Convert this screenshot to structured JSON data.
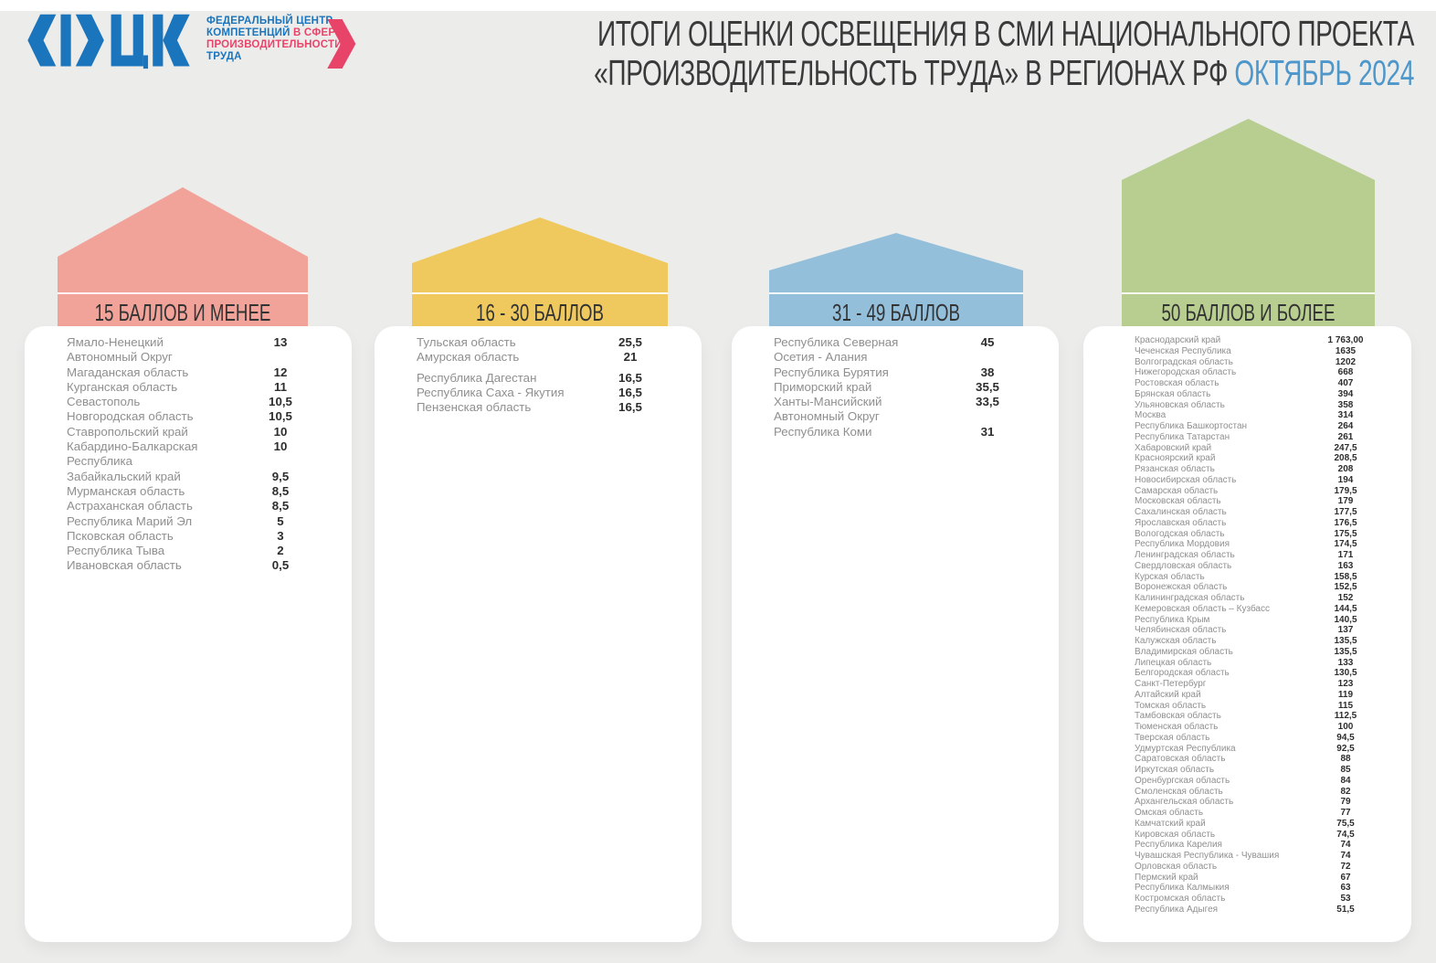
{
  "header": {
    "logo": {
      "mark": "ФЦК",
      "line1": "ФЕДЕРАЛЬНЫЙ ЦЕНТР",
      "line2_blue": "КОМПЕТЕНЦИЙ",
      "line2_red": "В СФЕРЕ",
      "line3": "ПРОИЗВОДИТЕЛЬНОСТИ",
      "line4": "ТРУДА",
      "blue": "#1B75BC",
      "red": "#E8446A"
    },
    "title_line1": "ИТОГИ ОЦЕНКИ ОСВЕЩЕНИЯ В СМИ НАЦИОНАЛЬНОГО ПРОЕКТА",
    "title_line2": "«ПРОИЗВОДИТЕЛЬНОСТЬ ТРУДА» В РЕГИОНАХ РФ",
    "title_period": "ОКТЯБРЬ 2024"
  },
  "chart_data": {
    "type": "table",
    "title": "ИТОГИ ОЦЕНКИ ОСВЕЩЕНИЯ В СМИ НАЦИОНАЛЬНОГО ПРОЕКТА «ПРОИЗВОДИТЕЛЬНОСТЬ ТРУДА» В РЕГИОНАХ РФ, ОКТЯБРЬ 2024",
    "groups": [
      {
        "label": "15 БАЛЛОВ И МЕНЕЕ",
        "color": "#F1A39A",
        "rows": [
          {
            "name": "Ямало-Ненецкий\nАвтономный Округ",
            "value": "13"
          },
          {
            "name": "Магаданская область",
            "value": "12"
          },
          {
            "name": "Курганская область",
            "value": "11"
          },
          {
            "name": "Севастополь",
            "value": "10,5"
          },
          {
            "name": "Новгородская область",
            "value": "10,5"
          },
          {
            "name": "Ставропольский край",
            "value": "10"
          },
          {
            "name": "Кабардино-Балкарская\nРеспублика",
            "value": "10"
          },
          {
            "name": "Забайкальский край",
            "value": "9,5"
          },
          {
            "name": "Мурманская область",
            "value": "8,5"
          },
          {
            "name": "Астраханская область",
            "value": "8,5"
          },
          {
            "name": "Республика Марий Эл",
            "value": "5"
          },
          {
            "name": "Псковская область",
            "value": "3"
          },
          {
            "name": "Республика Тыва",
            "value": "2"
          },
          {
            "name": "Ивановская область",
            "value": "0,5"
          }
        ]
      },
      {
        "label": "16 - 30 БАЛЛОВ",
        "color": "#EFC95E",
        "rows": [
          {
            "name": "Тульская область",
            "value": "25,5"
          },
          {
            "name": "Амурская область",
            "value": "21"
          },
          {
            "name": "Республика Дагестан",
            "value": "16,5",
            "gap": true
          },
          {
            "name": "Республика Саха - Якутия",
            "value": "16,5"
          },
          {
            "name": "Пензенская область",
            "value": "16,5"
          }
        ]
      },
      {
        "label": "31 - 49 БАЛЛОВ",
        "color": "#94BFDA",
        "rows": [
          {
            "name": "Республика Северная\nОсетия - Алания",
            "value": "45"
          },
          {
            "name": "Республика Бурятия",
            "value": "38"
          },
          {
            "name": "Приморский край",
            "value": "35,5"
          },
          {
            "name": "Ханты-Мансийский\nАвтономный Округ",
            "value": "33,5"
          },
          {
            "name": "Республика Коми",
            "value": "31"
          }
        ]
      },
      {
        "label": "50 БАЛЛОВ И БОЛЕЕ",
        "color": "#B7CE90",
        "rows": [
          {
            "name": "Краснодарский край",
            "value": "1 763,00"
          },
          {
            "name": "Чеченская Республика",
            "value": "1635"
          },
          {
            "name": "Волгоградская область",
            "value": "1202"
          },
          {
            "name": "Нижегородская область",
            "value": "668"
          },
          {
            "name": "Ростовская область",
            "value": "407"
          },
          {
            "name": "Брянская область",
            "value": "394"
          },
          {
            "name": "Ульяновская область",
            "value": "358"
          },
          {
            "name": "Москва",
            "value": "314"
          },
          {
            "name": "Республика Башкортостан",
            "value": "264"
          },
          {
            "name": "Республика Татарстан",
            "value": "261"
          },
          {
            "name": "Хабаровский край",
            "value": "247,5"
          },
          {
            "name": "Красноярский край",
            "value": "208,5"
          },
          {
            "name": "Рязанская область",
            "value": "208"
          },
          {
            "name": "Новосибирская область",
            "value": "194"
          },
          {
            "name": "Самарская область",
            "value": "179,5"
          },
          {
            "name": "Московская область",
            "value": "179"
          },
          {
            "name": "Сахалинская область",
            "value": "177,5"
          },
          {
            "name": "Ярославская область",
            "value": "176,5"
          },
          {
            "name": "Вологодская область",
            "value": "175,5"
          },
          {
            "name": "Республика Мордовия",
            "value": "174,5"
          },
          {
            "name": "Ленинградская область",
            "value": "171"
          },
          {
            "name": "Свердловская область",
            "value": "163"
          },
          {
            "name": "Курская область",
            "value": "158,5"
          },
          {
            "name": "Воронежская область",
            "value": "152,5"
          },
          {
            "name": "Калининградская область",
            "value": "152"
          },
          {
            "name": "Кемеровская область – Кузбасс",
            "value": "144,5"
          },
          {
            "name": "Республика Крым",
            "value": "140,5"
          },
          {
            "name": "Челябинская область",
            "value": "137"
          },
          {
            "name": "Калужская область",
            "value": "135,5"
          },
          {
            "name": "Владимирская область",
            "value": "135,5"
          },
          {
            "name": "Липецкая область",
            "value": "133"
          },
          {
            "name": "Белгородская область",
            "value": "130,5"
          },
          {
            "name": "Санкт-Петербург",
            "value": "123"
          },
          {
            "name": "Алтайский край",
            "value": "119"
          },
          {
            "name": "Томская область",
            "value": "115"
          },
          {
            "name": "Тамбовская область",
            "value": "112,5"
          },
          {
            "name": "Тюменская область",
            "value": "100"
          },
          {
            "name": "Тверская область",
            "value": "94,5"
          },
          {
            "name": "Удмуртская Республика",
            "value": "92,5"
          },
          {
            "name": "Саратовская область",
            "value": "88"
          },
          {
            "name": "Иркутская область",
            "value": "85"
          },
          {
            "name": "Оренбургская область",
            "value": "84"
          },
          {
            "name": "Смоленская область",
            "value": "82"
          },
          {
            "name": "Архангельская область",
            "value": "79"
          },
          {
            "name": "Омская область",
            "value": "77"
          },
          {
            "name": "Камчатский край",
            "value": "75,5"
          },
          {
            "name": "Кировская область",
            "value": "74,5"
          },
          {
            "name": "Республика Карелия",
            "value": "74"
          },
          {
            "name": "Чувашская Республика - Чувашия",
            "value": "74"
          },
          {
            "name": "Орловская область",
            "value": "72"
          },
          {
            "name": "Пермский край",
            "value": "67"
          },
          {
            "name": "Республика Калмыкия",
            "value": "63"
          },
          {
            "name": "Костромская область",
            "value": "53"
          },
          {
            "name": "Республика Адыгея",
            "value": "51,5"
          }
        ]
      }
    ]
  }
}
